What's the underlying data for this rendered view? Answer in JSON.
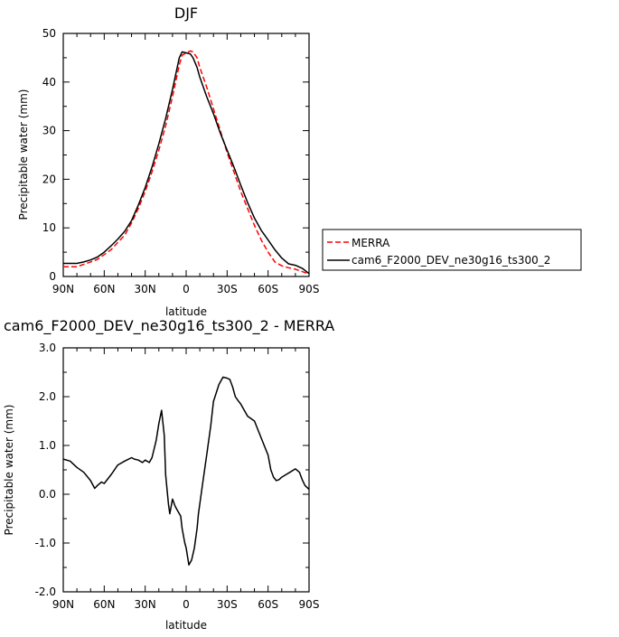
{
  "chart_data": [
    {
      "type": "line",
      "title": "DJF",
      "xlabel": "latitude",
      "ylabel": "Precipitable water (mm)",
      "x_ticks": [
        "90N",
        "60N",
        "30N",
        "0",
        "30S",
        "60S",
        "90S"
      ],
      "x_tick_values": [
        90,
        60,
        30,
        0,
        -30,
        -60,
        -90
      ],
      "y_ticks": [
        "0",
        "10",
        "20",
        "30",
        "40",
        "50"
      ],
      "xlim": [
        90,
        -90
      ],
      "ylim": [
        0,
        50
      ],
      "legend_position": "right",
      "series": [
        {
          "name": "MERRA",
          "color": "#ff0000",
          "style": "dashed",
          "x": [
            90,
            80,
            75,
            70,
            65,
            60,
            55,
            50,
            45,
            40,
            35,
            30,
            25,
            20,
            15,
            10,
            5,
            3,
            0,
            -3,
            -5,
            -8,
            -10,
            -15,
            -20,
            -25,
            -30,
            -35,
            -40,
            -45,
            -50,
            -55,
            -60,
            -65,
            -70,
            -75,
            -80,
            -85,
            -90
          ],
          "values": [
            2.0,
            2.0,
            2.5,
            3.0,
            3.5,
            4.5,
            5.5,
            7.0,
            8.5,
            11.0,
            14.0,
            17.5,
            21.5,
            26.0,
            31.0,
            37.0,
            43.5,
            45.5,
            46.0,
            46.4,
            46.2,
            45.0,
            43.0,
            39.0,
            34.5,
            30.0,
            25.5,
            21.5,
            17.5,
            14.0,
            10.5,
            7.5,
            5.0,
            3.0,
            2.2,
            1.8,
            1.5,
            1.0,
            0.5
          ]
        },
        {
          "name": "cam6_F2000_DEV_ne30g16_ts300_2",
          "color": "#000000",
          "style": "solid",
          "x": [
            90,
            80,
            75,
            70,
            65,
            60,
            55,
            50,
            45,
            40,
            35,
            30,
            25,
            20,
            15,
            10,
            5,
            3,
            0,
            -3,
            -5,
            -8,
            -10,
            -15,
            -20,
            -25,
            -30,
            -35,
            -40,
            -45,
            -50,
            -55,
            -60,
            -65,
            -70,
            -75,
            -80,
            -85,
            -90
          ],
          "values": [
            2.7,
            2.7,
            3.0,
            3.4,
            4.0,
            5.0,
            6.3,
            7.7,
            9.3,
            11.5,
            14.7,
            18.3,
            22.5,
            27.3,
            32.5,
            38.5,
            45.0,
            46.2,
            46.0,
            45.8,
            45.0,
            43.0,
            41.0,
            37.0,
            33.5,
            29.5,
            26.0,
            22.5,
            18.8,
            15.2,
            12.0,
            9.5,
            7.5,
            5.5,
            3.8,
            2.6,
            2.3,
            1.7,
            0.6
          ]
        }
      ]
    },
    {
      "type": "line",
      "title": "cam6_F2000_DEV_ne30g16_ts300_2 - MERRA",
      "xlabel": "latitude",
      "ylabel": "Precipitable water (mm)",
      "x_ticks": [
        "90N",
        "60N",
        "30N",
        "0",
        "30S",
        "60S",
        "90S"
      ],
      "x_tick_values": [
        90,
        60,
        30,
        0,
        -30,
        -60,
        -90
      ],
      "y_ticks": [
        "-2.0",
        "-1.0",
        "0.0",
        "1.0",
        "2.0",
        "3.0"
      ],
      "y_tick_values": [
        -2,
        -1,
        0,
        1,
        2,
        3
      ],
      "xlim": [
        90,
        -90
      ],
      "ylim": [
        -2,
        3
      ],
      "series": [
        {
          "color": "#000000",
          "style": "solid",
          "x": [
            90,
            85,
            80,
            75,
            70,
            67,
            65,
            62,
            60,
            55,
            50,
            45,
            40,
            38,
            35,
            32,
            30,
            27,
            25,
            22,
            20,
            18,
            16,
            15,
            13,
            12,
            10,
            8,
            6,
            4,
            3,
            1,
            0,
            -2,
            -4,
            -6,
            -8,
            -9,
            -10,
            -12,
            -15,
            -18,
            -20,
            -24,
            -27,
            -30,
            -32,
            -34,
            -36,
            -38,
            -40,
            -45,
            -50,
            -55,
            -60,
            -62,
            -64,
            -66,
            -68,
            -70,
            -73,
            -76,
            -80,
            -83,
            -85,
            -87,
            -90
          ],
          "values": [
            0.72,
            0.68,
            0.55,
            0.45,
            0.28,
            0.12,
            0.18,
            0.25,
            0.22,
            0.4,
            0.6,
            0.68,
            0.75,
            0.72,
            0.7,
            0.65,
            0.7,
            0.65,
            0.75,
            1.1,
            1.45,
            1.72,
            1.2,
            0.4,
            -0.2,
            -0.4,
            -0.1,
            -0.25,
            -0.35,
            -0.45,
            -0.7,
            -1.0,
            -1.1,
            -1.45,
            -1.35,
            -1.1,
            -0.7,
            -0.4,
            -0.2,
            0.2,
            0.8,
            1.4,
            1.9,
            2.25,
            2.4,
            2.38,
            2.35,
            2.2,
            2.0,
            1.92,
            1.85,
            1.6,
            1.5,
            1.15,
            0.8,
            0.5,
            0.35,
            0.28,
            0.3,
            0.35,
            0.4,
            0.45,
            0.52,
            0.45,
            0.3,
            0.18,
            0.1
          ]
        }
      ]
    }
  ]
}
